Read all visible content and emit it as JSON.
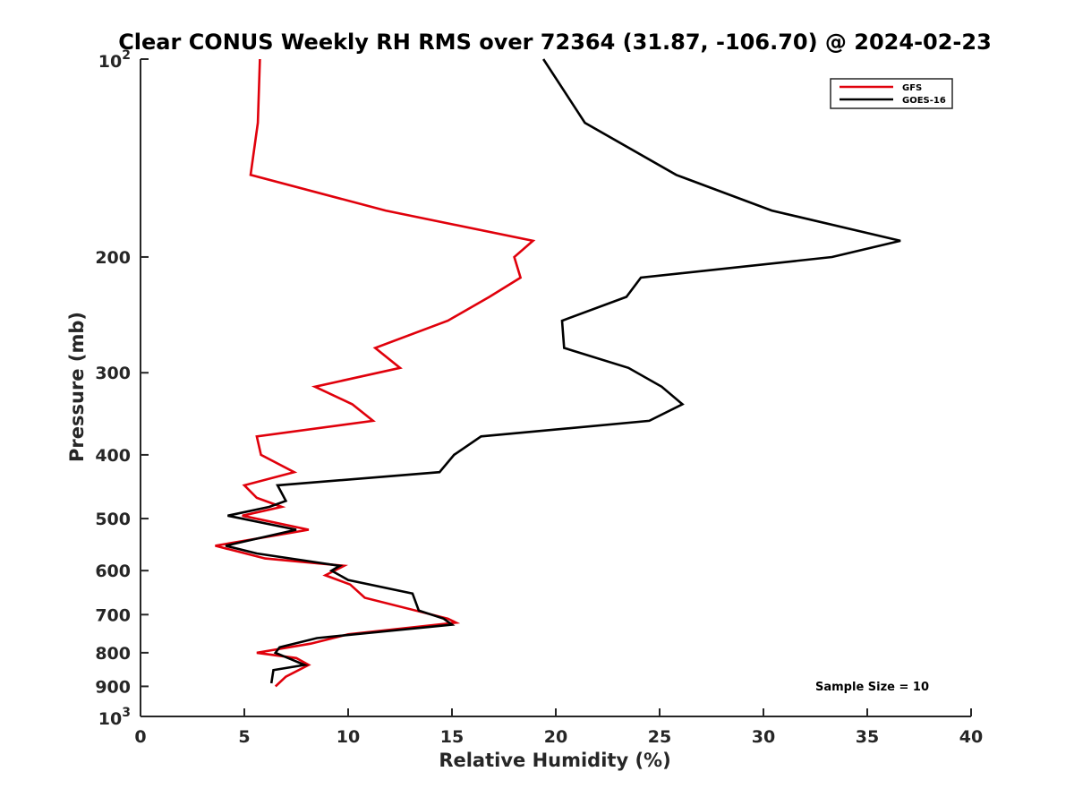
{
  "chart_data": {
    "type": "line",
    "title": "Clear CONUS Weekly RH RMS over 72364 (31.87, -106.70) @ 2024-02-23",
    "xlabel": "Relative Humidity (%)",
    "ylabel": "Pressure (mb)",
    "xlim": [
      0,
      40
    ],
    "ylim": [
      100,
      1000
    ],
    "y_scale": "log",
    "y_reversed": true,
    "x_ticks": [
      0,
      5,
      10,
      15,
      20,
      25,
      30,
      35,
      40
    ],
    "x_tick_labels": [
      "0",
      "5",
      "10",
      "15",
      "20",
      "25",
      "30",
      "35",
      "40"
    ],
    "y_ticks": [
      100,
      200,
      300,
      400,
      500,
      600,
      700,
      800,
      900,
      1000
    ],
    "y_tick_labels": [
      {
        "base": "10",
        "exp": "2"
      },
      {
        "base": "200",
        "exp": ""
      },
      {
        "base": "300",
        "exp": ""
      },
      {
        "base": "400",
        "exp": ""
      },
      {
        "base": "500",
        "exp": ""
      },
      {
        "base": "600",
        "exp": ""
      },
      {
        "base": "700",
        "exp": ""
      },
      {
        "base": "800",
        "exp": ""
      },
      {
        "base": "900",
        "exp": ""
      },
      {
        "base": "10",
        "exp": "3"
      }
    ],
    "legend_position": "top-right",
    "grid": false,
    "annotation": "Sample Size = 10",
    "series": [
      {
        "name": "GFS",
        "color": "#e0000b",
        "points": [
          [
            5.75,
            100
          ],
          [
            5.65,
            125
          ],
          [
            5.3,
            150
          ],
          [
            11.8,
            170
          ],
          [
            18.9,
            189
          ],
          [
            18.0,
            200
          ],
          [
            18.3,
            215
          ],
          [
            16.8,
            230
          ],
          [
            14.8,
            250
          ],
          [
            11.3,
            275
          ],
          [
            12.5,
            295
          ],
          [
            8.4,
            315
          ],
          [
            10.2,
            335
          ],
          [
            11.2,
            355
          ],
          [
            5.6,
            375
          ],
          [
            5.8,
            400
          ],
          [
            7.4,
            425
          ],
          [
            5.0,
            445
          ],
          [
            5.6,
            465
          ],
          [
            6.8,
            480
          ],
          [
            4.9,
            495
          ],
          [
            8.1,
            520
          ],
          [
            3.6,
            550
          ],
          [
            6.0,
            575
          ],
          [
            9.8,
            590
          ],
          [
            8.9,
            610
          ],
          [
            10.1,
            630
          ],
          [
            10.8,
            660
          ],
          [
            14.8,
            710
          ],
          [
            15.2,
            720
          ],
          [
            10.0,
            750
          ],
          [
            8.2,
            775
          ],
          [
            5.6,
            800
          ],
          [
            7.5,
            815
          ],
          [
            8.1,
            835
          ],
          [
            7.0,
            870
          ],
          [
            6.5,
            900
          ]
        ]
      },
      {
        "name": "GOES-16",
        "color": "#000000",
        "points": [
          [
            19.4,
            100
          ],
          [
            21.4,
            125
          ],
          [
            25.8,
            150
          ],
          [
            30.4,
            170
          ],
          [
            36.6,
            189
          ],
          [
            33.3,
            200
          ],
          [
            24.1,
            215
          ],
          [
            23.4,
            230
          ],
          [
            20.3,
            250
          ],
          [
            20.4,
            275
          ],
          [
            23.5,
            295
          ],
          [
            25.1,
            315
          ],
          [
            26.1,
            335
          ],
          [
            24.5,
            355
          ],
          [
            16.4,
            375
          ],
          [
            15.1,
            400
          ],
          [
            14.4,
            425
          ],
          [
            6.6,
            445
          ],
          [
            7.0,
            470
          ],
          [
            6.2,
            480
          ],
          [
            4.2,
            495
          ],
          [
            7.5,
            520
          ],
          [
            4.1,
            550
          ],
          [
            5.6,
            565
          ],
          [
            9.6,
            590
          ],
          [
            9.2,
            600
          ],
          [
            10.0,
            620
          ],
          [
            13.1,
            650
          ],
          [
            13.4,
            690
          ],
          [
            14.6,
            710
          ],
          [
            15.0,
            725
          ],
          [
            8.5,
            760
          ],
          [
            6.7,
            785
          ],
          [
            6.5,
            800
          ],
          [
            7.3,
            820
          ],
          [
            7.9,
            835
          ],
          [
            6.4,
            850
          ],
          [
            6.3,
            890
          ]
        ]
      }
    ]
  }
}
